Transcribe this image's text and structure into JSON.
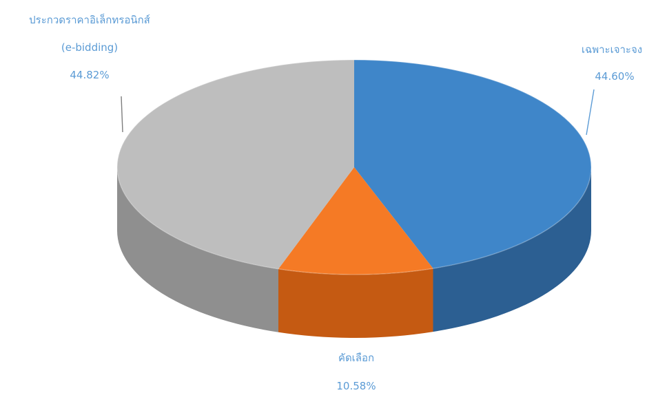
{
  "chart_data": {
    "type": "pie",
    "style": "3d",
    "title": "",
    "legend": "none",
    "slices": [
      {
        "label": "เฉพาะเจาะจง",
        "label_line2": "",
        "value": 44.6,
        "value_label": "44.60%",
        "color": "#3f86c9",
        "side_color": "#2c5f92"
      },
      {
        "label": "คัดเลือก",
        "label_line2": "",
        "value": 10.58,
        "value_label": "10.58%",
        "color": "#f57a25",
        "side_color": "#c55a12"
      },
      {
        "label": "ประกวดราคาอิเล็กทรอนิกส์",
        "label_line2": "(e-bidding)",
        "value": 44.82,
        "value_label": "44.82%",
        "color": "#bebebe",
        "side_color": "#8f8f8f"
      }
    ],
    "label_color": "#5b9bd5"
  }
}
